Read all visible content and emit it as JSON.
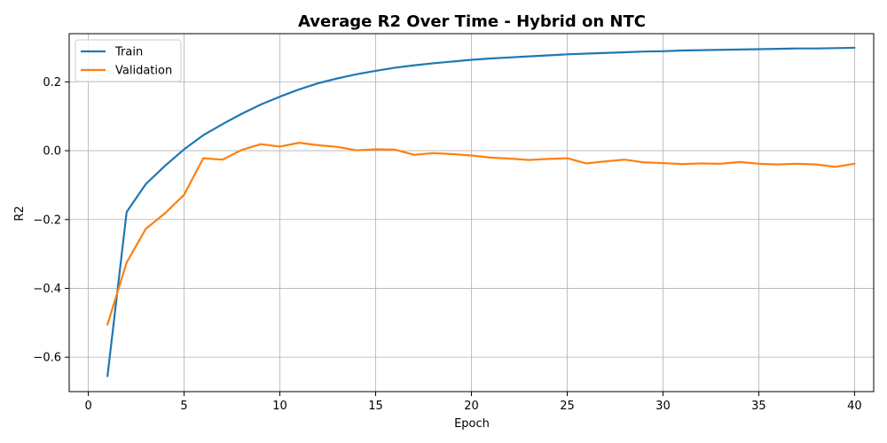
{
  "chart_data": {
    "type": "line",
    "title": "Average R2 Over Time - Hybrid on NTC",
    "xlabel": "Epoch",
    "ylabel": "R2",
    "xlim": [
      -1,
      41
    ],
    "ylim": [
      -0.7,
      0.34
    ],
    "xticks": [
      0,
      5,
      10,
      15,
      20,
      25,
      30,
      35,
      40
    ],
    "yticks": [
      -0.6,
      -0.4,
      -0.2,
      0.0,
      0.2
    ],
    "ytick_labels": [
      "−0.6",
      "−0.4",
      "−0.2",
      "0.0",
      "0.2"
    ],
    "grid": true,
    "legend_position": "upper-left",
    "x": [
      1,
      2,
      3,
      4,
      5,
      6,
      7,
      8,
      9,
      10,
      11,
      12,
      13,
      14,
      15,
      16,
      17,
      18,
      19,
      20,
      21,
      22,
      23,
      24,
      25,
      26,
      27,
      28,
      29,
      30,
      31,
      32,
      33,
      34,
      35,
      36,
      37,
      38,
      39,
      40
    ],
    "series": [
      {
        "name": "Train",
        "color": "#1f77b4",
        "values": [
          -0.655,
          -0.178,
          -0.097,
          -0.044,
          0.004,
          0.045,
          0.077,
          0.107,
          0.134,
          0.157,
          0.178,
          0.196,
          0.21,
          0.222,
          0.232,
          0.241,
          0.248,
          0.254,
          0.259,
          0.264,
          0.268,
          0.271,
          0.274,
          0.277,
          0.28,
          0.282,
          0.284,
          0.286,
          0.288,
          0.289,
          0.291,
          0.292,
          0.293,
          0.294,
          0.295,
          0.296,
          0.297,
          0.297,
          0.298,
          0.299
        ]
      },
      {
        "name": "Validation",
        "color": "#ff7f0e",
        "values": [
          -0.505,
          -0.325,
          -0.227,
          -0.182,
          -0.128,
          -0.022,
          -0.026,
          0.002,
          0.019,
          0.012,
          0.023,
          0.016,
          0.011,
          0.001,
          0.004,
          0.003,
          -0.012,
          -0.007,
          -0.01,
          -0.014,
          -0.02,
          -0.023,
          -0.027,
          -0.024,
          -0.022,
          -0.037,
          -0.031,
          -0.026,
          -0.034,
          -0.036,
          -0.039,
          -0.037,
          -0.038,
          -0.033,
          -0.038,
          -0.04,
          -0.038,
          -0.04,
          -0.047,
          -0.038
        ]
      }
    ]
  }
}
